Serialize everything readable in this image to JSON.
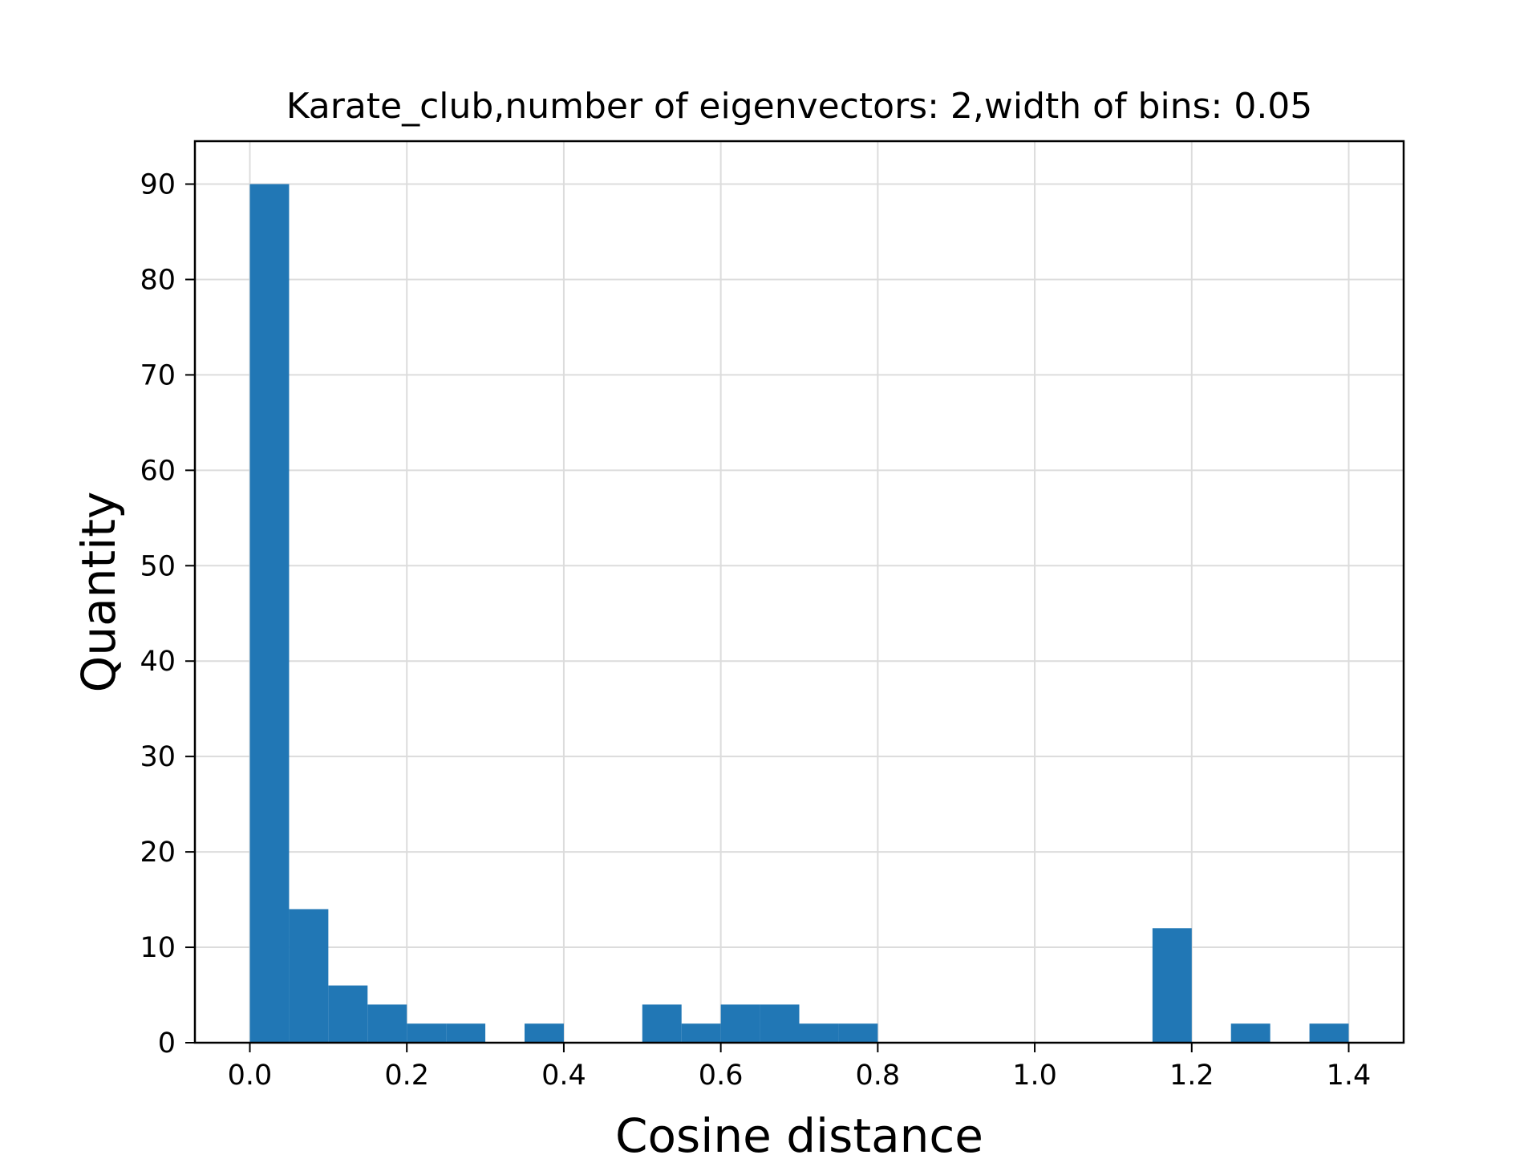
{
  "chart_data": {
    "type": "bar",
    "title": "Karate_club,number of eigenvectors: 2,width of bins: 0.05",
    "xlabel": "Cosine distance",
    "ylabel": "Quantity",
    "bin_width": 0.05,
    "bins": [
      {
        "x0": 0.0,
        "x1": 0.05,
        "count": 90
      },
      {
        "x0": 0.05,
        "x1": 0.1,
        "count": 14
      },
      {
        "x0": 0.1,
        "x1": 0.15,
        "count": 6
      },
      {
        "x0": 0.15,
        "x1": 0.2,
        "count": 4
      },
      {
        "x0": 0.2,
        "x1": 0.25,
        "count": 2
      },
      {
        "x0": 0.25,
        "x1": 0.3,
        "count": 2
      },
      {
        "x0": 0.35,
        "x1": 0.4,
        "count": 2
      },
      {
        "x0": 0.5,
        "x1": 0.55,
        "count": 4
      },
      {
        "x0": 0.55,
        "x1": 0.6,
        "count": 2
      },
      {
        "x0": 0.6,
        "x1": 0.65,
        "count": 4
      },
      {
        "x0": 0.65,
        "x1": 0.7,
        "count": 4
      },
      {
        "x0": 0.7,
        "x1": 0.75,
        "count": 2
      },
      {
        "x0": 0.75,
        "x1": 0.8,
        "count": 2
      },
      {
        "x0": 1.15,
        "x1": 1.2,
        "count": 12
      },
      {
        "x0": 1.25,
        "x1": 1.3,
        "count": 2
      },
      {
        "x0": 1.35,
        "x1": 1.4,
        "count": 2
      }
    ],
    "xlim": [
      -0.07,
      1.47
    ],
    "ylim": [
      0,
      94.5
    ],
    "xticks": [
      0.0,
      0.2,
      0.4,
      0.6,
      0.8,
      1.0,
      1.2,
      1.4
    ],
    "xtick_labels": [
      "0.0",
      "0.2",
      "0.4",
      "0.6",
      "0.8",
      "1.0",
      "1.2",
      "1.4"
    ],
    "yticks": [
      0,
      10,
      20,
      30,
      40,
      50,
      60,
      70,
      80,
      90
    ],
    "ytick_labels": [
      "0",
      "10",
      "20",
      "30",
      "40",
      "50",
      "60",
      "70",
      "80",
      "90"
    ],
    "grid": true,
    "colors": {
      "bar": "#2177b5",
      "grid": "#dcdcdc",
      "axes": "#000000",
      "background": "#ffffff"
    }
  }
}
